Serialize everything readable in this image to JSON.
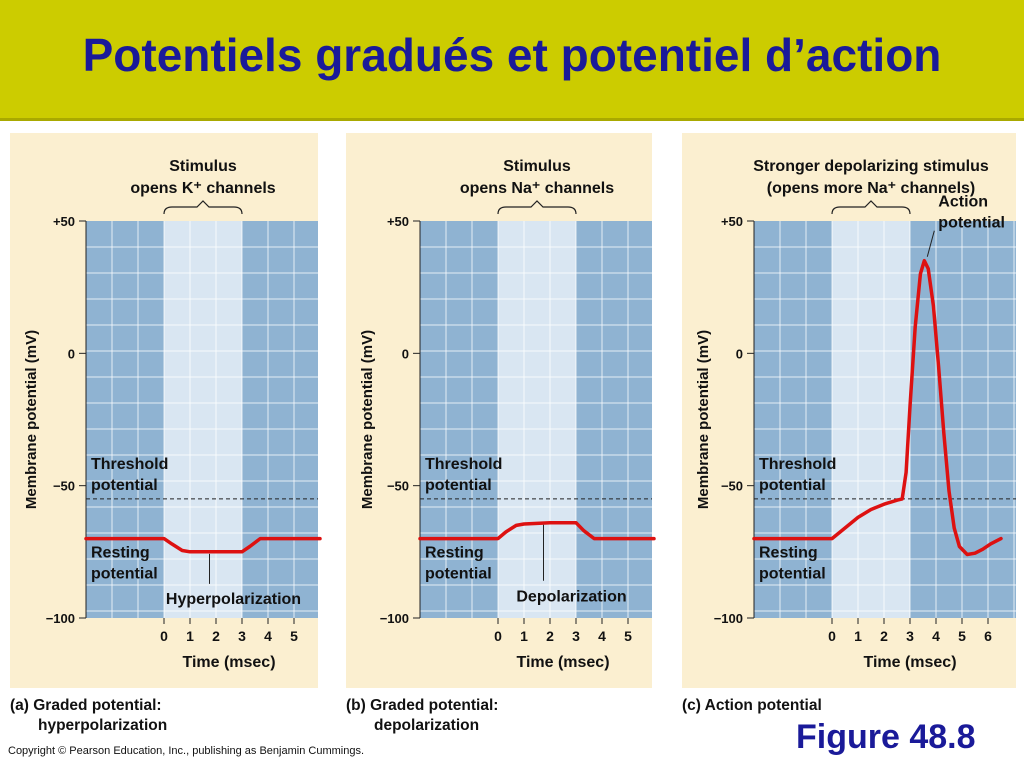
{
  "page": {
    "title": "Potentiels gradués et potentiel d’action"
  },
  "footer": {
    "figure": "Figure 48.8",
    "copyright": "Copyright © Pearson Education, Inc., publishing as Benjamin Cummings."
  },
  "colors": {
    "trace": "#dd1111",
    "panel_bg": "#fbefd0",
    "plot_bg": "#8fb3d2",
    "stim_bg": "#d9e6f2",
    "title_bar": "#cccc00",
    "title_text": "#1a1a99"
  },
  "chart_data": [
    {
      "type": "line",
      "id": "a",
      "stimulus_label": [
        "Stimulus",
        "opens K⁺ channels"
      ],
      "stimulus_range": [
        0,
        3
      ],
      "caption": [
        "(a) Graded potential:",
        "hyperpolarization"
      ],
      "xlabel": "Time (msec)",
      "ylabel": "Membrane potential (mV)",
      "xlim": [
        -3,
        6
      ],
      "ylim": [
        -100,
        50
      ],
      "xticks": [
        0,
        1,
        2,
        3,
        4,
        5
      ],
      "yticks": [
        50,
        0,
        -50,
        -100
      ],
      "ytick_labels": [
        "+50",
        "0",
        "−50",
        "−100"
      ],
      "threshold": -55,
      "threshold_label": [
        "Threshold",
        "potential"
      ],
      "resting_label": [
        "Resting",
        "potential"
      ],
      "annotation": {
        "text": "Hyperpolarization",
        "x": 1.75,
        "y": -75
      },
      "series": [
        {
          "x": [
            -3,
            0,
            0.3,
            0.7,
            1,
            2,
            3,
            3.3,
            3.7,
            6
          ],
          "y": [
            -70,
            -70,
            -72,
            -74.5,
            -75,
            -75,
            -75,
            -73,
            -70,
            -70
          ]
        }
      ]
    },
    {
      "type": "line",
      "id": "b",
      "stimulus_label": [
        "Stimulus",
        "opens Na⁺ channels"
      ],
      "stimulus_range": [
        0,
        3
      ],
      "caption": [
        "(b) Graded potential:",
        "depolarization"
      ],
      "xlabel": "Time (msec)",
      "ylabel": "Membrane potential (mV)",
      "xlim": [
        -3,
        6
      ],
      "ylim": [
        -100,
        50
      ],
      "xticks": [
        0,
        1,
        2,
        3,
        4,
        5
      ],
      "yticks": [
        50,
        0,
        -50,
        -100
      ],
      "ytick_labels": [
        "+50",
        "0",
        "−50",
        "−100"
      ],
      "threshold": -55,
      "threshold_label": [
        "Threshold",
        "potential"
      ],
      "resting_label": [
        "Resting",
        "potential"
      ],
      "annotation": {
        "text": "Depolarization",
        "x": 1.75,
        "y": -64
      },
      "series": [
        {
          "x": [
            -3,
            0,
            0.3,
            0.7,
            1,
            2,
            3,
            3.3,
            3.7,
            6
          ],
          "y": [
            -70,
            -70,
            -67.5,
            -65,
            -64.5,
            -64,
            -64,
            -67,
            -70,
            -70
          ]
        }
      ]
    },
    {
      "type": "line",
      "id": "c",
      "stimulus_label": [
        "Stronger depolarizing stimulus",
        "(opens more Na⁺ channels)"
      ],
      "stimulus_range": [
        0,
        3
      ],
      "caption": [
        "(c) Action potential"
      ],
      "xlabel": "Time (msec)",
      "ylabel": "Membrane potential (mV)",
      "xlim": [
        -3,
        6.5
      ],
      "ylim": [
        -100,
        50
      ],
      "xticks": [
        0,
        1,
        2,
        3,
        4,
        5,
        6
      ],
      "yticks": [
        50,
        0,
        -50,
        -100
      ],
      "ytick_labels": [
        "+50",
        "0",
        "−50",
        "−100"
      ],
      "threshold": -55,
      "threshold_label": [
        "Threshold",
        "potential"
      ],
      "resting_label": [
        "Resting",
        "potential"
      ],
      "annotation": {
        "text": "Action potential",
        "lines": [
          "Action",
          "potential"
        ],
        "x": 3.55,
        "y": 35
      },
      "series": [
        {
          "x": [
            -3,
            0,
            0.5,
            1,
            1.5,
            2,
            2.5,
            2.7,
            2.85,
            3,
            3.2,
            3.4,
            3.55,
            3.7,
            3.9,
            4.1,
            4.3,
            4.5,
            4.7,
            4.9,
            5.2,
            5.5,
            5.8,
            6.1,
            6.5
          ],
          "y": [
            -70,
            -70,
            -66,
            -62,
            -59,
            -57,
            -55.5,
            -55,
            -45,
            -20,
            10,
            30,
            35,
            32,
            18,
            -5,
            -30,
            -52,
            -66,
            -73,
            -76,
            -75.5,
            -74,
            -72,
            -70
          ]
        }
      ]
    }
  ]
}
